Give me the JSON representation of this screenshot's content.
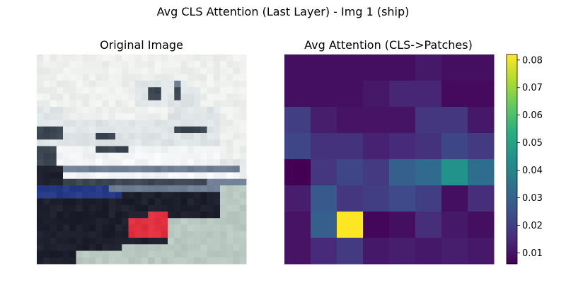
{
  "figure": {
    "suptitle": "Avg CLS Attention (Last Layer) - Img 1 (ship)"
  },
  "chart_data": [
    {
      "type": "image",
      "title": "Original Image",
      "axes": "off",
      "grid_resolution": [
        32,
        32
      ],
      "scene": {
        "sky_color": "#eef0ee",
        "structure_color": "#dfe5e7",
        "window_color": "#3c4650",
        "stripe_color": "#f3f4f5",
        "deck_color": "#6f7e93",
        "hull_color": "#1d1f2d",
        "bow_stripe_color": "#263a88",
        "bow_red_color": "#e0303f",
        "water_color": "#b9c9c1"
      }
    },
    {
      "type": "heatmap",
      "title": "Avg Attention (CLS->Patches)",
      "axes": "off",
      "colormap": "viridis",
      "vmin": 0.006,
      "vmax": 0.082,
      "colorbar": {
        "ticks": [
          0.01,
          0.02,
          0.03,
          0.04,
          0.05,
          0.06,
          0.07,
          0.08
        ],
        "tick_labels": [
          "0.01",
          "0.02",
          "0.03",
          "0.04",
          "0.05",
          "0.06",
          "0.07",
          "0.08"
        ]
      },
      "rows": 8,
      "cols": 8,
      "values": [
        [
          0.009,
          0.009,
          0.009,
          0.009,
          0.009,
          0.011,
          0.009,
          0.009
        ],
        [
          0.009,
          0.009,
          0.009,
          0.011,
          0.014,
          0.014,
          0.008,
          0.008
        ],
        [
          0.02,
          0.012,
          0.01,
          0.01,
          0.01,
          0.018,
          0.018,
          0.011
        ],
        [
          0.022,
          0.017,
          0.017,
          0.013,
          0.015,
          0.017,
          0.022,
          0.019
        ],
        [
          0.006,
          0.018,
          0.022,
          0.019,
          0.029,
          0.032,
          0.045,
          0.033
        ],
        [
          0.012,
          0.027,
          0.018,
          0.02,
          0.023,
          0.02,
          0.009,
          0.016
        ],
        [
          0.01,
          0.029,
          0.082,
          0.007,
          0.009,
          0.016,
          0.011,
          0.009
        ],
        [
          0.01,
          0.015,
          0.019,
          0.011,
          0.012,
          0.011,
          0.012,
          0.011
        ]
      ]
    }
  ]
}
